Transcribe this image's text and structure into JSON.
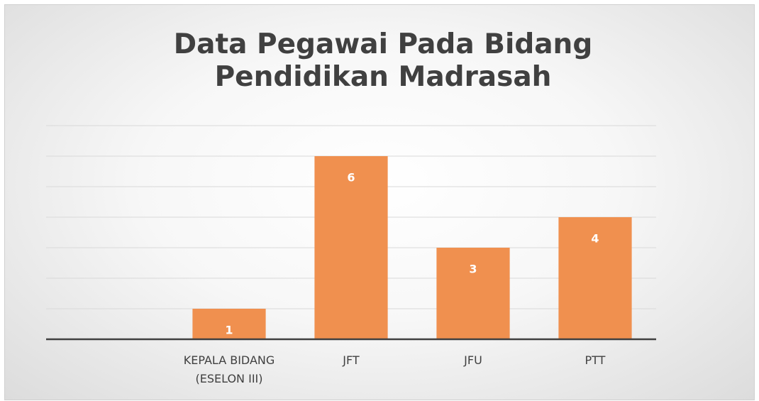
{
  "chart_data": {
    "type": "bar",
    "title": "Data Pegawai Pada Bidang Pendidikan Madrasah",
    "categories": [
      null,
      "KEPALA BIDANG (ESELON III)",
      "JFT",
      "JFU",
      "PTT"
    ],
    "values": [
      null,
      1,
      6,
      3,
      4
    ],
    "color": "#f0904f",
    "ylim": [
      0,
      7
    ],
    "yticks": [
      0,
      1,
      2,
      3,
      4,
      5,
      6,
      7
    ],
    "grid": true
  }
}
